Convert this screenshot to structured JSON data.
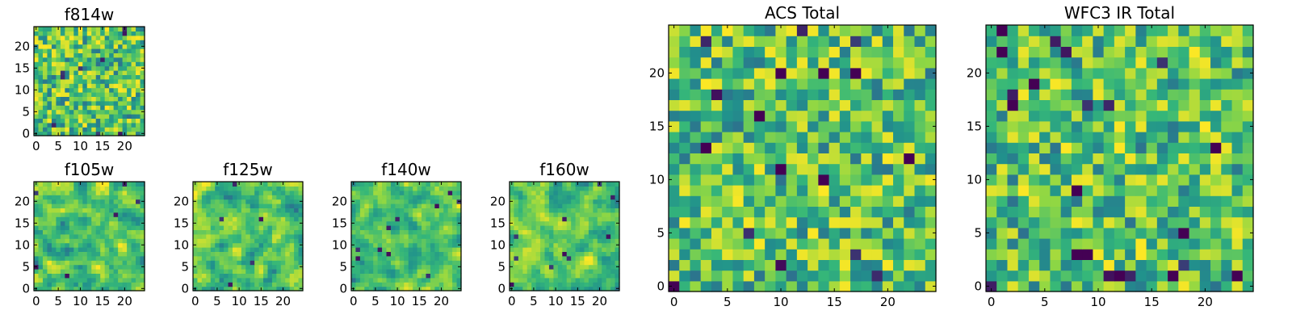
{
  "colormap": {
    "name": "viridis",
    "stops": [
      "#440154",
      "#31688e",
      "#21918c",
      "#35b779",
      "#90d743",
      "#fde725"
    ]
  },
  "chart_data": [
    {
      "id": "f814w",
      "type": "heatmap",
      "title": "f814w",
      "grid_size": 25,
      "xlim": [
        -0.5,
        24.5
      ],
      "ylim": [
        -0.5,
        24.5
      ],
      "xticks": [
        0,
        5,
        10,
        15,
        20
      ],
      "xtick_labels": [
        "0",
        "5",
        "10",
        "15",
        "20"
      ],
      "yticks": [
        0,
        5,
        10,
        15,
        20
      ],
      "ytick_labels": [
        "0",
        "5",
        "10",
        "15",
        "20"
      ],
      "value_range": [
        0,
        1
      ],
      "seed": 11,
      "smooth": 0,
      "min_dots": 9
    },
    {
      "id": "f105w",
      "type": "heatmap",
      "title": "f105w",
      "grid_size": 25,
      "xlim": [
        -0.5,
        24.5
      ],
      "ylim": [
        -0.5,
        24.5
      ],
      "xticks": [
        0,
        5,
        10,
        15,
        20
      ],
      "xtick_labels": [
        "0",
        "5",
        "10",
        "15",
        "20"
      ],
      "yticks": [
        0,
        5,
        10,
        15,
        20
      ],
      "ytick_labels": [
        "0",
        "5",
        "10",
        "15",
        "20"
      ],
      "value_range": [
        0,
        1
      ],
      "seed": 23,
      "smooth": 1,
      "min_dots": 6
    },
    {
      "id": "f125w",
      "type": "heatmap",
      "title": "f125w",
      "grid_size": 25,
      "xlim": [
        -0.5,
        24.5
      ],
      "ylim": [
        -0.5,
        24.5
      ],
      "xticks": [
        0,
        5,
        10,
        15,
        20
      ],
      "xtick_labels": [
        "0",
        "5",
        "10",
        "15",
        "20"
      ],
      "yticks": [
        0,
        5,
        10,
        15,
        20
      ],
      "ytick_labels": [
        "0",
        "5",
        "10",
        "15",
        "20"
      ],
      "value_range": [
        0,
        1
      ],
      "seed": 37,
      "smooth": 1,
      "min_dots": 5
    },
    {
      "id": "f140w",
      "type": "heatmap",
      "title": "f140w",
      "grid_size": 25,
      "xlim": [
        -0.5,
        24.5
      ],
      "ylim": [
        -0.5,
        24.5
      ],
      "xticks": [
        0,
        5,
        10,
        15,
        20
      ],
      "xtick_labels": [
        "0",
        "5",
        "10",
        "15",
        "20"
      ],
      "yticks": [
        0,
        5,
        10,
        15,
        20
      ],
      "ytick_labels": [
        "0",
        "5",
        "10",
        "15",
        "20"
      ],
      "value_range": [
        0,
        1
      ],
      "seed": 41,
      "smooth": 1,
      "min_dots": 10
    },
    {
      "id": "f160w",
      "type": "heatmap",
      "title": "f160w",
      "grid_size": 25,
      "xlim": [
        -0.5,
        24.5
      ],
      "ylim": [
        -0.5,
        24.5
      ],
      "xticks": [
        0,
        5,
        10,
        15,
        20
      ],
      "xtick_labels": [
        "0",
        "5",
        "10",
        "15",
        "20"
      ],
      "yticks": [
        0,
        5,
        10,
        15,
        20
      ],
      "ytick_labels": [
        "0",
        "5",
        "10",
        "15",
        "20"
      ],
      "value_range": [
        0,
        1
      ],
      "seed": 53,
      "smooth": 1,
      "min_dots": 10
    },
    {
      "id": "acs-total",
      "type": "heatmap",
      "title": "ACS Total",
      "grid_size": 25,
      "xlim": [
        -0.5,
        24.5
      ],
      "ylim": [
        -0.5,
        24.5
      ],
      "xticks": [
        0,
        5,
        10,
        15,
        20
      ],
      "xtick_labels": [
        "0",
        "5",
        "10",
        "15",
        "20"
      ],
      "yticks": [
        0,
        5,
        10,
        15,
        20
      ],
      "ytick_labels": [
        "0",
        "5",
        "10",
        "15",
        "20"
      ],
      "value_range": [
        0,
        1
      ],
      "seed": 67,
      "smooth": 0,
      "min_dots": 8,
      "dark_cells": [
        [
          0,
          0
        ],
        [
          3,
          13
        ],
        [
          8,
          16
        ],
        [
          10,
          20
        ],
        [
          14,
          20
        ],
        [
          17,
          20
        ],
        [
          22,
          12
        ],
        [
          10,
          11
        ],
        [
          14,
          10
        ]
      ]
    },
    {
      "id": "wfc3-ir-total",
      "type": "heatmap",
      "title": "WFC3 IR Total",
      "grid_size": 25,
      "xlim": [
        -0.5,
        24.5
      ],
      "ylim": [
        -0.5,
        24.5
      ],
      "xticks": [
        0,
        5,
        10,
        15,
        20
      ],
      "xtick_labels": [
        "0",
        "5",
        "10",
        "15",
        "20"
      ],
      "yticks": [
        0,
        5,
        10,
        15,
        20
      ],
      "ytick_labels": [
        "0",
        "5",
        "10",
        "15",
        "20"
      ],
      "value_range": [
        0,
        1
      ],
      "seed": 79,
      "smooth": 0,
      "min_dots": 10,
      "dark_cells": [
        [
          1,
          24
        ],
        [
          1,
          22
        ],
        [
          2,
          17
        ],
        [
          4,
          19
        ],
        [
          8,
          9
        ],
        [
          8,
          3
        ],
        [
          9,
          3
        ],
        [
          18,
          5
        ],
        [
          21,
          13
        ],
        [
          12,
          1
        ],
        [
          17,
          1
        ],
        [
          23,
          1
        ]
      ]
    }
  ]
}
